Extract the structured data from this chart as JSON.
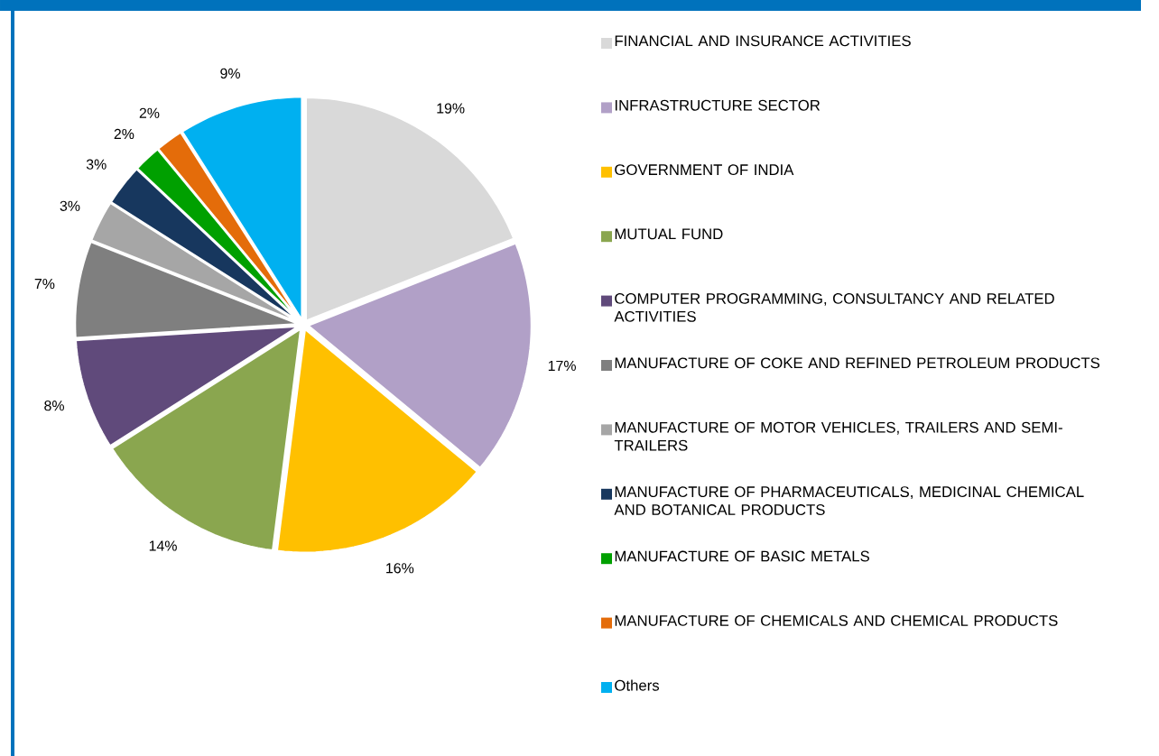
{
  "chart_data": {
    "type": "pie",
    "categories": [
      "FINANCIAL AND INSURANCE ACTIVITIES",
      "INFRASTRUCTURE SECTOR",
      "GOVERNMENT OF INDIA",
      "MUTUAL FUND",
      "COMPUTER PROGRAMMING, CONSULTANCY AND RELATED ACTIVITIES",
      "MANUFACTURE OF COKE AND REFINED PETROLEUM PRODUCTS",
      "MANUFACTURE OF MOTOR VEHICLES, TRAILERS AND SEMI-TRAILERS",
      "MANUFACTURE OF PHARMACEUTICALS, MEDICINAL CHEMICAL AND BOTANICAL PRODUCTS",
      "MANUFACTURE OF BASIC METALS",
      "MANUFACTURE OF CHEMICALS AND CHEMICAL PRODUCTS",
      "Others"
    ],
    "values": [
      19,
      17,
      16,
      14,
      8,
      7,
      3,
      3,
      2,
      2,
      9
    ],
    "value_labels": [
      "19%",
      "17%",
      "16%",
      "14%",
      "8%",
      "7%",
      "3%",
      "3%",
      "2%",
      "2%",
      "9%"
    ],
    "colors": [
      "#d9d9d9",
      "#b1a0c7",
      "#ffc000",
      "#8aa64f",
      "#604a7b",
      "#7f7f7f",
      "#a6a6a6",
      "#17375e",
      "#00a000",
      "#e46c0a",
      "#00b0f0"
    ],
    "legend": "right"
  }
}
